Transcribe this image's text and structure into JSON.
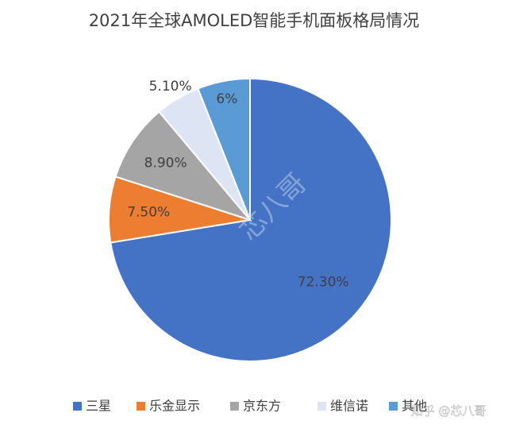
{
  "chart_data": {
    "type": "pie",
    "title": "2021年全球AMOLED智能手机面板格局情况",
    "categories": [
      "三星",
      "乐金显示",
      "京东方",
      "维信诺",
      "其他"
    ],
    "values": [
      72.3,
      7.5,
      8.9,
      5.1,
      6
    ],
    "value_labels": [
      "72.30%",
      "7.50%",
      "8.90%",
      "5.10%",
      "6%"
    ],
    "colors": [
      "#4472c4",
      "#ed7d31",
      "#a5a5a5",
      "#dde5f4",
      "#5b9bd5"
    ],
    "legend": "bottom",
    "watermarks": [
      "芯八哥",
      "知乎 @芯八哥"
    ]
  }
}
